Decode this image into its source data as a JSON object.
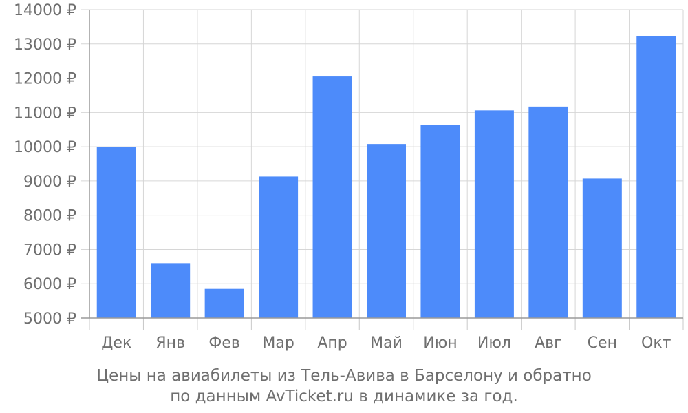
{
  "chart_data": {
    "type": "bar",
    "categories": [
      "Дек",
      "Янв",
      "Фев",
      "Мар",
      "Апр",
      "Май",
      "Июн",
      "Июл",
      "Авг",
      "Сен",
      "Окт"
    ],
    "values": [
      10000,
      6600,
      5850,
      9130,
      12050,
      10080,
      10630,
      11060,
      11170,
      9070,
      13230
    ],
    "ylim": [
      5000,
      14000
    ],
    "ytick_step": 1000,
    "ytick_labels": [
      "5000 ₽",
      "6000 ₽",
      "7000 ₽",
      "8000 ₽",
      "9000 ₽",
      "10000 ₽",
      "11000 ₽",
      "12000 ₽",
      "13000 ₽",
      "14000 ₽"
    ],
    "bar_color": "#4d8bfa",
    "grid": true,
    "caption_line1": "Цены на авиабилеты из Тель-Авива в Барселону и обратно",
    "caption_line2": "по данным AvTicket.ru в динамике за год."
  }
}
